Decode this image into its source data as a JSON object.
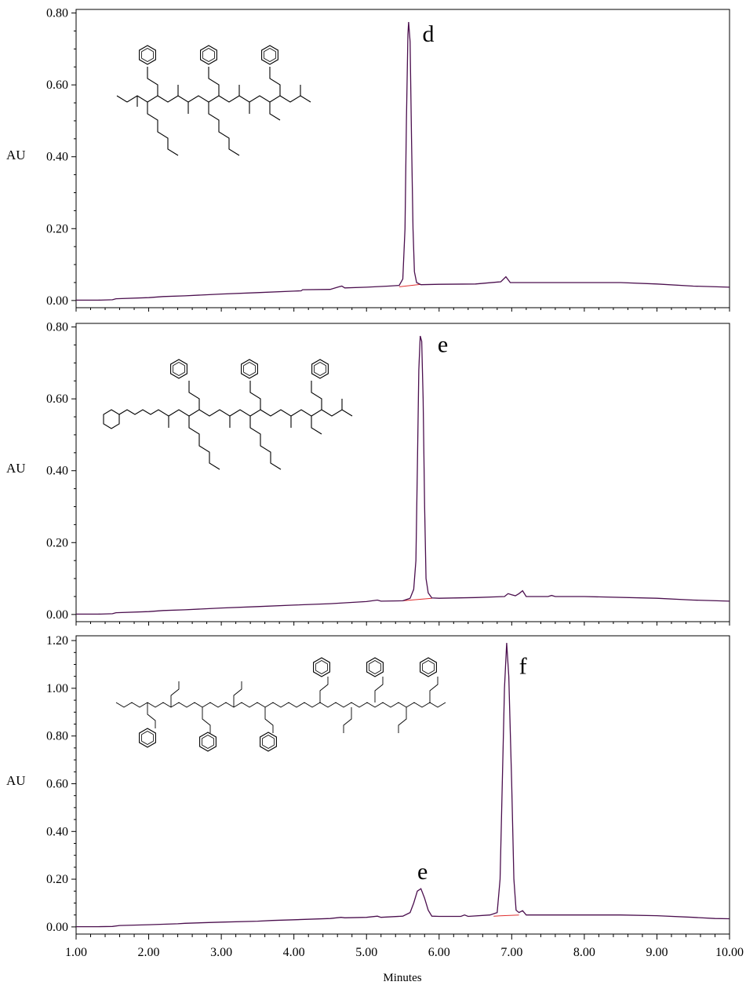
{
  "chart_data": [
    {
      "type": "line",
      "ylabel": "AU",
      "xlim": [
        1.0,
        10.0
      ],
      "ylim": [
        -0.02,
        0.81
      ],
      "yticks": [
        "0.00",
        "0.20",
        "0.40",
        "0.60",
        "0.80"
      ],
      "peak_label": "d",
      "peak_label_time": 5.77,
      "peak_label_value": 0.72,
      "structure": "thiol-peptoid",
      "colors": {
        "trace": "#4b0f4e",
        "baseline": "#e03030"
      },
      "series": [
        {
          "x": [
            1.0,
            1.3,
            1.5,
            1.55,
            2.0,
            2.2,
            2.5,
            3.0,
            3.5,
            4.0,
            4.1,
            4.12,
            4.5,
            4.62,
            4.66,
            4.7,
            5.0,
            5.3,
            5.45,
            5.5,
            5.53,
            5.55,
            5.57,
            5.58,
            5.6,
            5.62,
            5.64,
            5.66,
            5.69,
            5.75,
            6.0,
            6.5,
            6.85,
            6.92,
            6.98,
            7.1,
            7.5,
            8.0,
            8.5,
            9.0,
            9.5,
            10.0
          ],
          "y": [
            0.001,
            0.001,
            0.002,
            0.005,
            0.008,
            0.011,
            0.013,
            0.018,
            0.022,
            0.026,
            0.027,
            0.03,
            0.031,
            0.038,
            0.04,
            0.035,
            0.037,
            0.04,
            0.042,
            0.06,
            0.2,
            0.5,
            0.74,
            0.775,
            0.72,
            0.45,
            0.2,
            0.08,
            0.05,
            0.044,
            0.045,
            0.046,
            0.052,
            0.066,
            0.05,
            0.05,
            0.05,
            0.05,
            0.05,
            0.046,
            0.04,
            0.037
          ]
        }
      ],
      "baseline_segment": {
        "x": [
          5.45,
          5.75
        ],
        "y": [
          0.038,
          0.045
        ]
      }
    },
    {
      "type": "line",
      "ylabel": "AU",
      "xlim": [
        1.0,
        10.0
      ],
      "ylim": [
        -0.02,
        0.81
      ],
      "yticks": [
        "0.00",
        "0.20",
        "0.40",
        "0.60",
        "0.80"
      ],
      "peak_label": "e",
      "peak_label_time": 5.98,
      "peak_label_value": 0.73,
      "structure": "pyridyl-disulfide-peptoid",
      "colors": {
        "trace": "#4b0f4e",
        "baseline": "#e03030"
      },
      "series": [
        {
          "x": [
            1.0,
            1.3,
            1.5,
            1.55,
            2.0,
            2.2,
            2.5,
            3.0,
            3.5,
            4.0,
            4.5,
            5.0,
            5.15,
            5.2,
            5.5,
            5.6,
            5.65,
            5.68,
            5.7,
            5.72,
            5.74,
            5.76,
            5.78,
            5.8,
            5.82,
            5.85,
            5.9,
            6.0,
            6.5,
            6.9,
            6.95,
            7.0,
            7.05,
            7.1,
            7.15,
            7.2,
            7.5,
            7.55,
            7.6,
            8.0,
            9.0,
            9.5,
            10.0
          ],
          "y": [
            0.001,
            0.001,
            0.002,
            0.005,
            0.008,
            0.011,
            0.013,
            0.018,
            0.022,
            0.026,
            0.03,
            0.036,
            0.04,
            0.037,
            0.038,
            0.045,
            0.07,
            0.15,
            0.4,
            0.68,
            0.775,
            0.76,
            0.6,
            0.3,
            0.1,
            0.06,
            0.046,
            0.045,
            0.047,
            0.05,
            0.058,
            0.055,
            0.052,
            0.058,
            0.066,
            0.05,
            0.05,
            0.053,
            0.05,
            0.05,
            0.045,
            0.04,
            0.037
          ]
        }
      ],
      "baseline_segment": {
        "x": [
          5.5,
          5.9
        ],
        "y": [
          0.038,
          0.045
        ]
      }
    },
    {
      "type": "line",
      "ylabel": "AU",
      "xlabel": "Minutes",
      "xlim": [
        1.0,
        10.0
      ],
      "ylim": [
        -0.03,
        1.22
      ],
      "yticks": [
        "0.00",
        "0.20",
        "0.40",
        "0.60",
        "0.80",
        "1.00",
        "1.20"
      ],
      "xticks": [
        "1.00",
        "2.00",
        "3.00",
        "4.00",
        "5.00",
        "6.00",
        "7.00",
        "8.00",
        "9.00",
        "10.00"
      ],
      "peak_labels": [
        {
          "text": "e",
          "time": 5.7,
          "value": 0.2
        },
        {
          "text": "f",
          "time": 7.1,
          "value": 1.06
        }
      ],
      "structure": "disulfide-dimer-peptoid",
      "colors": {
        "trace": "#4b0f4e",
        "baseline": "#e03030"
      },
      "series": [
        {
          "x": [
            1.0,
            1.3,
            1.5,
            1.6,
            2.0,
            2.4,
            2.5,
            3.0,
            3.5,
            3.7,
            4.0,
            4.5,
            4.65,
            4.7,
            5.0,
            5.15,
            5.2,
            5.5,
            5.6,
            5.65,
            5.7,
            5.75,
            5.8,
            5.85,
            5.9,
            6.0,
            6.3,
            6.35,
            6.4,
            6.7,
            6.8,
            6.84,
            6.87,
            6.9,
            6.93,
            6.96,
            7.0,
            7.03,
            7.06,
            7.1,
            7.15,
            7.2,
            7.5,
            8.0,
            8.5,
            9.0,
            9.5,
            9.8,
            10.0
          ],
          "y": [
            0.001,
            0.001,
            0.002,
            0.006,
            0.009,
            0.013,
            0.015,
            0.02,
            0.024,
            0.027,
            0.03,
            0.035,
            0.04,
            0.038,
            0.04,
            0.045,
            0.04,
            0.045,
            0.06,
            0.1,
            0.15,
            0.16,
            0.12,
            0.07,
            0.045,
            0.044,
            0.044,
            0.05,
            0.044,
            0.05,
            0.06,
            0.2,
            0.6,
            1.0,
            1.19,
            1.05,
            0.6,
            0.2,
            0.07,
            0.06,
            0.068,
            0.05,
            0.05,
            0.05,
            0.05,
            0.047,
            0.04,
            0.035,
            0.034
          ]
        }
      ],
      "baseline_segment": {
        "x": [
          6.75,
          7.1
        ],
        "y": [
          0.045,
          0.05
        ]
      }
    }
  ]
}
